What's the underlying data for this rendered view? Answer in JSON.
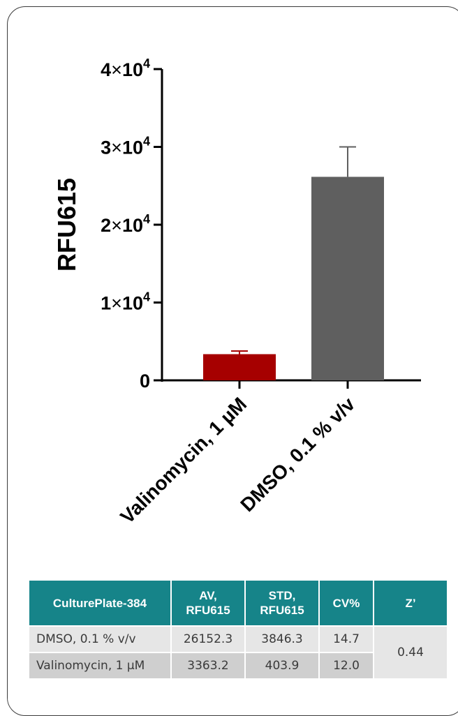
{
  "chart_data": {
    "type": "bar",
    "ylabel": "RFU615",
    "ylim": [
      0,
      40000
    ],
    "y_ticks": [
      {
        "value": 0,
        "label": "0"
      },
      {
        "value": 10000,
        "mant": "1",
        "exp": "4"
      },
      {
        "value": 20000,
        "mant": "2",
        "exp": "4"
      },
      {
        "value": 30000,
        "mant": "3",
        "exp": "4"
      },
      {
        "value": 40000,
        "mant": "4",
        "exp": "4"
      }
    ],
    "categories": [
      "Valinomycin, 1 µM",
      "DMSO, 0.1 % v/v"
    ],
    "values": [
      3363.2,
      26152.3
    ],
    "errors": [
      403.9,
      3846.3
    ],
    "colors": [
      "#a60000",
      "#5f5f5f"
    ],
    "grid": false
  },
  "table": {
    "headers": [
      {
        "lines": [
          "CulturePlate-384"
        ]
      },
      {
        "lines": [
          "AV,",
          "RFU615"
        ]
      },
      {
        "lines": [
          "STD,",
          "RFU615"
        ]
      },
      {
        "lines": [
          "CV%"
        ]
      },
      {
        "lines": [
          "Z’"
        ]
      }
    ],
    "rows": [
      {
        "name": "DMSO, 0.1 % v/v",
        "av": "26152.3",
        "std": "3846.3",
        "cv": "14.7"
      },
      {
        "name": "Valinomycin, 1 μM",
        "av": "3363.2",
        "std": "403.9",
        "cv": "12.0"
      }
    ],
    "z": "0.44",
    "header_color": "#168489"
  }
}
